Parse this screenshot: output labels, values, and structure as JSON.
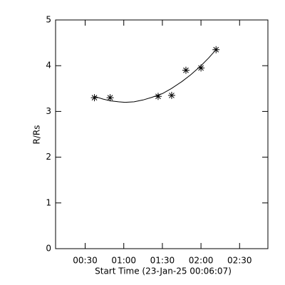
{
  "chart_data": {
    "type": "scatter",
    "x_label": "Start Time (23-Jan-25 00:06:07)",
    "y_label": "R/Rs",
    "xlim": [
      7,
      172
    ],
    "ylim": [
      0,
      5
    ],
    "xticks": [
      {
        "value": 30,
        "label": "00:30"
      },
      {
        "value": 60,
        "label": "01:00"
      },
      {
        "value": 90,
        "label": "01:30"
      },
      {
        "value": 120,
        "label": "02:00"
      },
      {
        "value": 150,
        "label": "02:30"
      }
    ],
    "yticks": [
      0,
      1,
      2,
      3,
      4,
      5
    ],
    "color": "#000000",
    "series": [
      {
        "x": [
          37.2,
          49.4,
          86.7,
          97.2,
          108.3,
          120,
          131.7
        ],
        "values": [
          3.3,
          3.3,
          3.33,
          3.35,
          3.9,
          3.95,
          4.35
        ],
        "marker": "asterisk"
      },
      {
        "x": [
          37,
          44,
          50,
          56,
          61,
          68,
          75,
          82,
          90,
          97,
          105,
          112,
          120,
          126,
          132
        ],
        "values": [
          3.33,
          3.27,
          3.23,
          3.21,
          3.2,
          3.21,
          3.25,
          3.31,
          3.39,
          3.5,
          3.65,
          3.8,
          4.0,
          4.17,
          4.36
        ],
        "marker": "line"
      }
    ]
  }
}
